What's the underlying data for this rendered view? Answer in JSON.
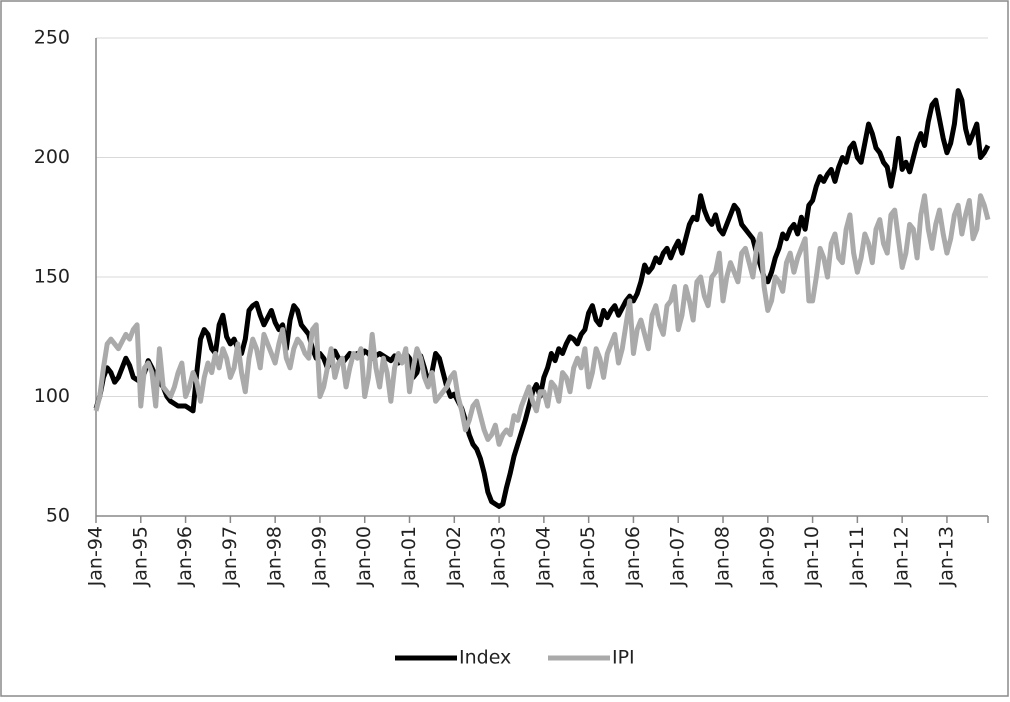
{
  "chart_data": {
    "type": "line",
    "categories": [
      "Jan-94",
      null,
      null,
      null,
      null,
      null,
      null,
      null,
      null,
      null,
      null,
      null,
      "Jan-95",
      null,
      null,
      null,
      null,
      null,
      null,
      null,
      null,
      null,
      null,
      null,
      "Jan-96",
      null,
      null,
      null,
      null,
      null,
      null,
      null,
      null,
      null,
      null,
      null,
      "Jan-97",
      null,
      null,
      null,
      null,
      null,
      null,
      null,
      null,
      null,
      null,
      null,
      "Jan-98",
      null,
      null,
      null,
      null,
      null,
      null,
      null,
      null,
      null,
      null,
      null,
      "Jan-99",
      null,
      null,
      null,
      null,
      null,
      null,
      null,
      null,
      null,
      null,
      null,
      "Jan-00",
      null,
      null,
      null,
      null,
      null,
      null,
      null,
      null,
      null,
      null,
      null,
      "Jan-01",
      null,
      null,
      null,
      null,
      null,
      null,
      null,
      null,
      null,
      null,
      null,
      "Jan-02",
      null,
      null,
      null,
      null,
      null,
      null,
      null,
      null,
      null,
      null,
      null,
      "Jan-03",
      null,
      null,
      null,
      null,
      null,
      null,
      null,
      null,
      null,
      null,
      null,
      "Jan-04",
      null,
      null,
      null,
      null,
      null,
      null,
      null,
      null,
      null,
      null,
      null,
      "Jan-05",
      null,
      null,
      null,
      null,
      null,
      null,
      null,
      null,
      null,
      null,
      null,
      "Jan-06",
      null,
      null,
      null,
      null,
      null,
      null,
      null,
      null,
      null,
      null,
      null,
      "Jan-07",
      null,
      null,
      null,
      null,
      null,
      null,
      null,
      null,
      null,
      null,
      null,
      "Jan-08",
      null,
      null,
      null,
      null,
      null,
      null,
      null,
      null,
      null,
      null,
      null,
      "Jan-09",
      null,
      null,
      null,
      null,
      null,
      null,
      null,
      null,
      null,
      null,
      null,
      "Jan-10",
      null,
      null,
      null,
      null,
      null,
      null,
      null,
      null,
      null,
      null,
      null,
      "Jan-11",
      null,
      null,
      null,
      null,
      null,
      null,
      null,
      null,
      null,
      null,
      null,
      "Jan-12",
      null,
      null,
      null,
      null,
      null,
      null,
      null,
      null,
      null,
      null,
      null,
      "Jan-13",
      null,
      null,
      null,
      null,
      null,
      null,
      null,
      null,
      null,
      null,
      null
    ],
    "series": [
      {
        "name": "Index",
        "color": "#000000",
        "values": [
          95,
          100,
          108,
          112,
          110,
          106,
          108,
          112,
          116,
          113,
          108,
          107,
          106,
          110,
          115,
          112,
          108,
          106,
          104,
          100,
          98,
          97,
          96,
          96,
          96,
          95,
          94,
          110,
          124,
          128,
          126,
          120,
          118,
          130,
          134,
          125,
          122,
          124,
          120,
          118,
          124,
          136,
          138,
          139,
          134,
          130,
          133,
          136,
          131,
          128,
          130,
          120,
          132,
          138,
          136,
          130,
          128,
          126,
          120,
          116,
          118,
          116,
          112,
          115,
          119,
          116,
          114,
          116,
          118,
          117,
          118,
          117,
          119,
          118,
          116,
          117,
          118,
          117,
          116,
          115,
          117,
          114,
          116,
          118,
          116,
          108,
          110,
          117,
          112,
          106,
          110,
          118,
          116,
          110,
          104,
          100,
          101,
          98,
          95,
          90,
          84,
          80,
          78,
          74,
          68,
          60,
          56,
          55,
          54,
          55,
          62,
          68,
          75,
          80,
          85,
          90,
          96,
          102,
          105,
          100,
          108,
          112,
          118,
          115,
          120,
          118,
          122,
          125,
          124,
          122,
          126,
          128,
          135,
          138,
          132,
          130,
          136,
          133,
          136,
          138,
          134,
          137,
          140,
          142,
          140,
          143,
          148,
          155,
          152,
          154,
          158,
          156,
          160,
          162,
          158,
          162,
          165,
          160,
          166,
          172,
          175,
          174,
          184,
          178,
          174,
          172,
          176,
          170,
          168,
          172,
          176,
          180,
          178,
          172,
          170,
          168,
          166,
          160,
          155,
          150,
          148,
          152,
          158,
          162,
          168,
          166,
          170,
          172,
          168,
          175,
          170,
          180,
          182,
          188,
          192,
          190,
          193,
          195,
          190,
          196,
          200,
          198,
          204,
          206,
          200,
          198,
          206,
          214,
          210,
          204,
          202,
          198,
          196,
          188,
          196,
          208,
          195,
          198,
          194,
          200,
          206,
          210,
          205,
          215,
          222,
          224,
          216,
          208,
          202,
          206,
          214,
          228,
          224,
          212,
          206,
          210,
          214,
          200,
          202,
          205
        ]
      },
      {
        "name": "IPI",
        "color": "#aaaaaa",
        "values": [
          94,
          100,
          112,
          122,
          124,
          122,
          120,
          123,
          126,
          124,
          128,
          130,
          96,
          112,
          114,
          110,
          96,
          120,
          104,
          102,
          100,
          104,
          110,
          114,
          100,
          104,
          110,
          106,
          98,
          108,
          114,
          110,
          118,
          112,
          120,
          116,
          108,
          112,
          122,
          110,
          102,
          116,
          124,
          120,
          112,
          126,
          122,
          118,
          114,
          122,
          128,
          116,
          112,
          120,
          124,
          122,
          118,
          116,
          128,
          130,
          100,
          104,
          112,
          120,
          108,
          114,
          116,
          104,
          112,
          118,
          116,
          120,
          100,
          108,
          126,
          112,
          104,
          116,
          110,
          98,
          112,
          118,
          114,
          120,
          102,
          112,
          120,
          116,
          108,
          104,
          110,
          98,
          100,
          102,
          104,
          108,
          110,
          100,
          94,
          86,
          90,
          96,
          98,
          92,
          86,
          82,
          84,
          88,
          80,
          84,
          86,
          84,
          92,
          90,
          96,
          100,
          104,
          98,
          94,
          102,
          102,
          96,
          106,
          104,
          98,
          110,
          108,
          102,
          112,
          116,
          112,
          120,
          104,
          110,
          120,
          116,
          108,
          118,
          122,
          126,
          114,
          120,
          130,
          140,
          118,
          128,
          132,
          126,
          120,
          134,
          138,
          130,
          126,
          138,
          140,
          146,
          128,
          134,
          146,
          140,
          132,
          148,
          150,
          142,
          138,
          150,
          152,
          160,
          140,
          150,
          156,
          152,
          148,
          160,
          162,
          156,
          150,
          162,
          168,
          146,
          136,
          140,
          150,
          148,
          144,
          156,
          160,
          152,
          158,
          162,
          166,
          140,
          140,
          150,
          162,
          158,
          150,
          164,
          168,
          158,
          156,
          170,
          176,
          160,
          152,
          158,
          168,
          164,
          156,
          170,
          174,
          164,
          160,
          176,
          178,
          166,
          154,
          160,
          172,
          170,
          158,
          176,
          184,
          170,
          162,
          172,
          178,
          168,
          160,
          166,
          176,
          180,
          168,
          176,
          182,
          166,
          170,
          184,
          180,
          174
        ]
      }
    ],
    "ylim": [
      50,
      250
    ],
    "yticks": [
      50,
      100,
      150,
      200,
      250
    ],
    "grid": true,
    "legend": "bottom"
  }
}
